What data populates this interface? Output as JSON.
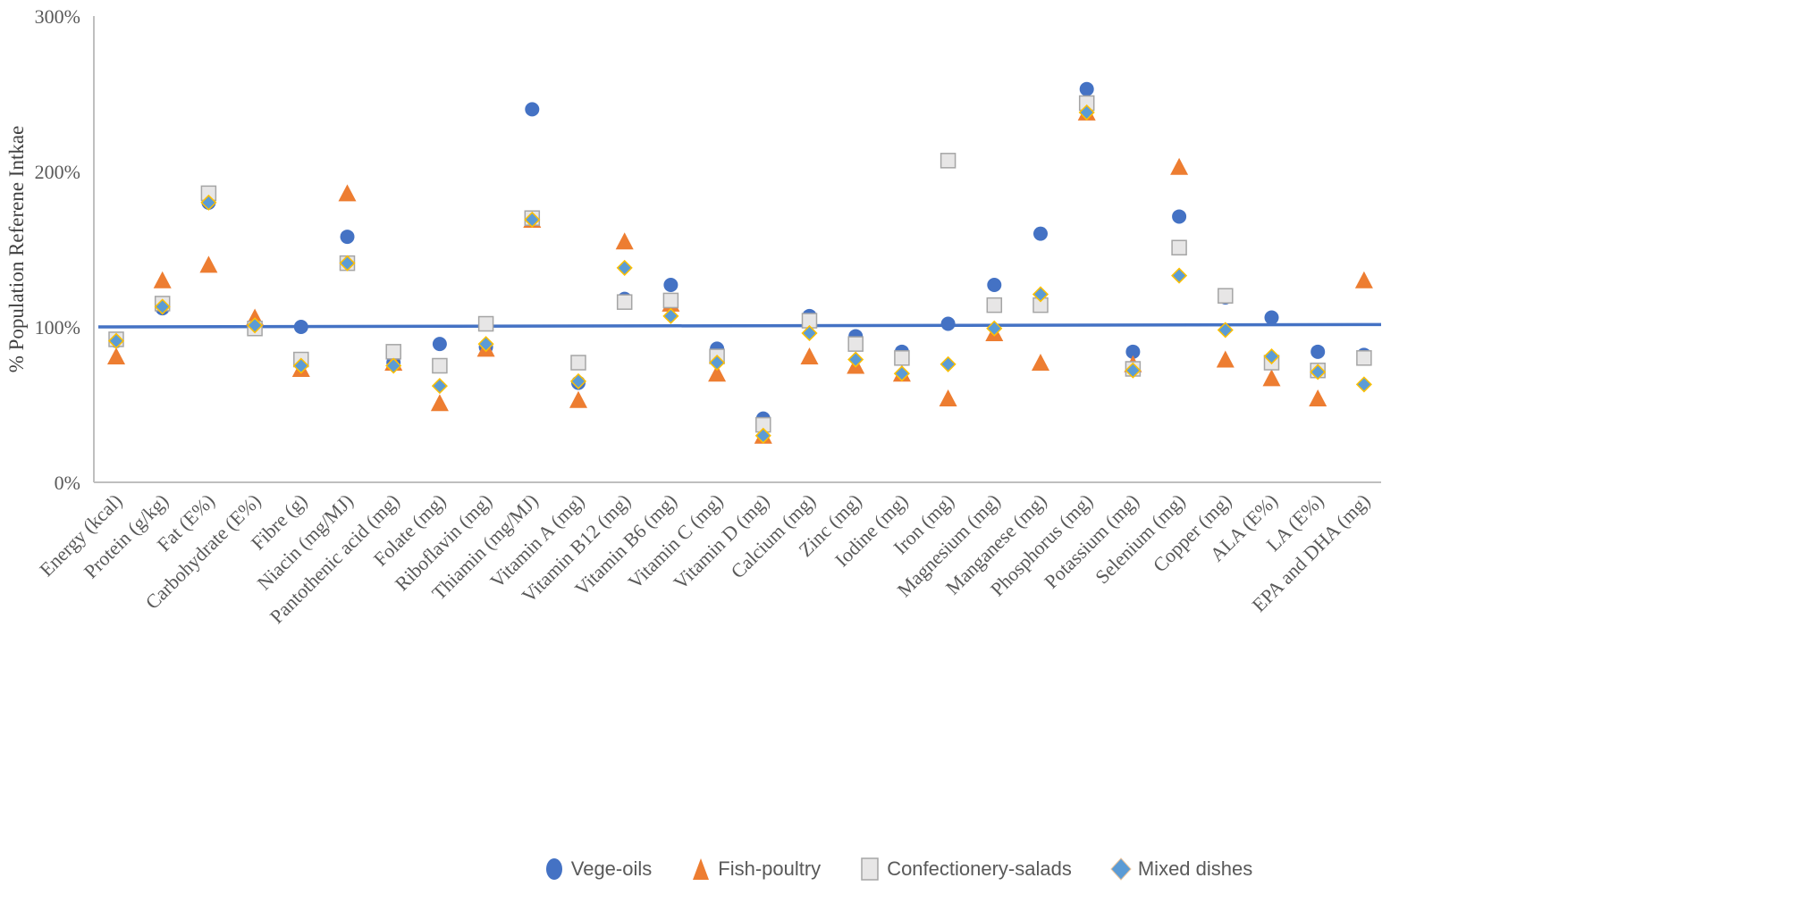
{
  "chart_data": {
    "type": "scatter",
    "title": "",
    "xlabel": "",
    "ylabel": "% Population Referene Intkae",
    "ylim": [
      0,
      300
    ],
    "yticks": [
      0,
      100,
      200,
      300
    ],
    "ytick_labels": [
      "0%",
      "100%",
      "200%",
      "300%"
    ],
    "grid": false,
    "reference_line": {
      "y": 100,
      "y_end": 101.5,
      "color": "#4472C4"
    },
    "legend_position": "bottom",
    "categories": [
      "Energy (kcal)",
      "Protein (g/kg)",
      "Fat (E%)",
      "Carbohydrate (E%)",
      "Fibre (g)",
      "Niacin (mg/MJ)",
      "Pantothenic acid (mg)",
      "Folate (mg)",
      "Riboflavin (mg)",
      "Thiamin (mg/MJ)",
      "Vitamin A (mg)",
      "Vitamin B12 (mg)",
      "Vitamin B6 (mg)",
      "Vitamin C (mg)",
      "Vitamin D (mg)",
      "Calcium (mg)",
      "Zinc (mg)",
      "Iodine (mg)",
      "Iron (mg)",
      "Magnesium (mg)",
      "Manganese (mg)",
      "Phosphorus (mg)",
      "Potassium (mg)",
      "Selenium (mg)",
      "Copper (mg)",
      "ALA (E%)",
      "LA (E%)",
      "EPA and DHA (mg)"
    ],
    "series": [
      {
        "name": "Vege-oils",
        "marker": "circle",
        "color": "#4472C4",
        "values": [
          91,
          112,
          180,
          101,
          100,
          158,
          77,
          89,
          87,
          240,
          64,
          118,
          127,
          86,
          41,
          107,
          94,
          84,
          102,
          127,
          160,
          253,
          84,
          171,
          119,
          106,
          84,
          82
        ]
      },
      {
        "name": "Fish-poultry",
        "marker": "triangle",
        "color": "#ED7D31",
        "values": [
          81,
          130,
          140,
          106,
          73,
          186,
          77,
          51,
          86,
          169,
          53,
          155,
          115,
          70,
          30,
          81,
          75,
          70,
          54,
          96,
          77,
          238,
          76,
          203,
          79,
          67,
          54,
          130
        ]
      },
      {
        "name": "Confectionery-salads",
        "marker": "square",
        "color": "#E7E6E6",
        "stroke": "#A5A5A5",
        "values": [
          92,
          115,
          186,
          99,
          79,
          141,
          84,
          75,
          102,
          170,
          77,
          116,
          117,
          81,
          37,
          104,
          89,
          80,
          207,
          114,
          114,
          244,
          73,
          151,
          120,
          77,
          72,
          80
        ]
      },
      {
        "name": "Mixed dishes",
        "marker": "diamond",
        "color": "#5B9BD5",
        "stroke": "#FFC000",
        "values": [
          91,
          113,
          180,
          101,
          75,
          141,
          75,
          62,
          89,
          169,
          65,
          138,
          107,
          77,
          30,
          96,
          79,
          70,
          76,
          99,
          121,
          238,
          72,
          133,
          98,
          81,
          71,
          63
        ]
      }
    ]
  }
}
